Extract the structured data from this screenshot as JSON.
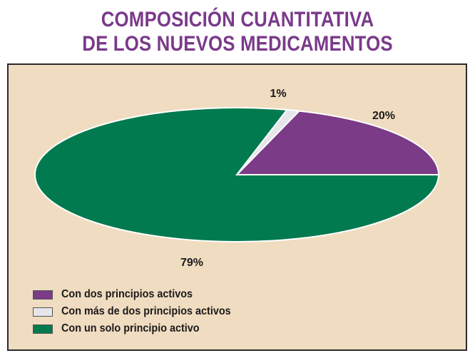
{
  "title": {
    "line1": "COMPOSICIÓN CUANTITATIVA",
    "line2": "DE LOS NUEVOS MEDICAMENTOS"
  },
  "chart_data": {
    "type": "pie",
    "title": "COMPOSICIÓN CUANTITATIVA DE LOS NUEVOS MEDICAMENTOS",
    "slices": [
      {
        "label": "Con dos principios activos",
        "value": 20,
        "display": "20%",
        "color": "#7b3b87"
      },
      {
        "label": "Con más de dos principios activos",
        "value": 1,
        "display": "1%",
        "color": "#e4e6ea"
      },
      {
        "label": "Con un solo principio activo",
        "value": 79,
        "display": "79%",
        "color": "#007a4e"
      }
    ],
    "legend_position": "bottom-left",
    "background": "#f0dcc0",
    "border_color": "#2b2b2b",
    "title_color": "#7a3a8a"
  },
  "legend": [
    {
      "label": "Con dos principios activos",
      "color": "#7b3b87"
    },
    {
      "label": "Con más de dos principios activos",
      "color": "#e4e6ea"
    },
    {
      "label": "Con un solo principio activo",
      "color": "#007a4e"
    }
  ]
}
